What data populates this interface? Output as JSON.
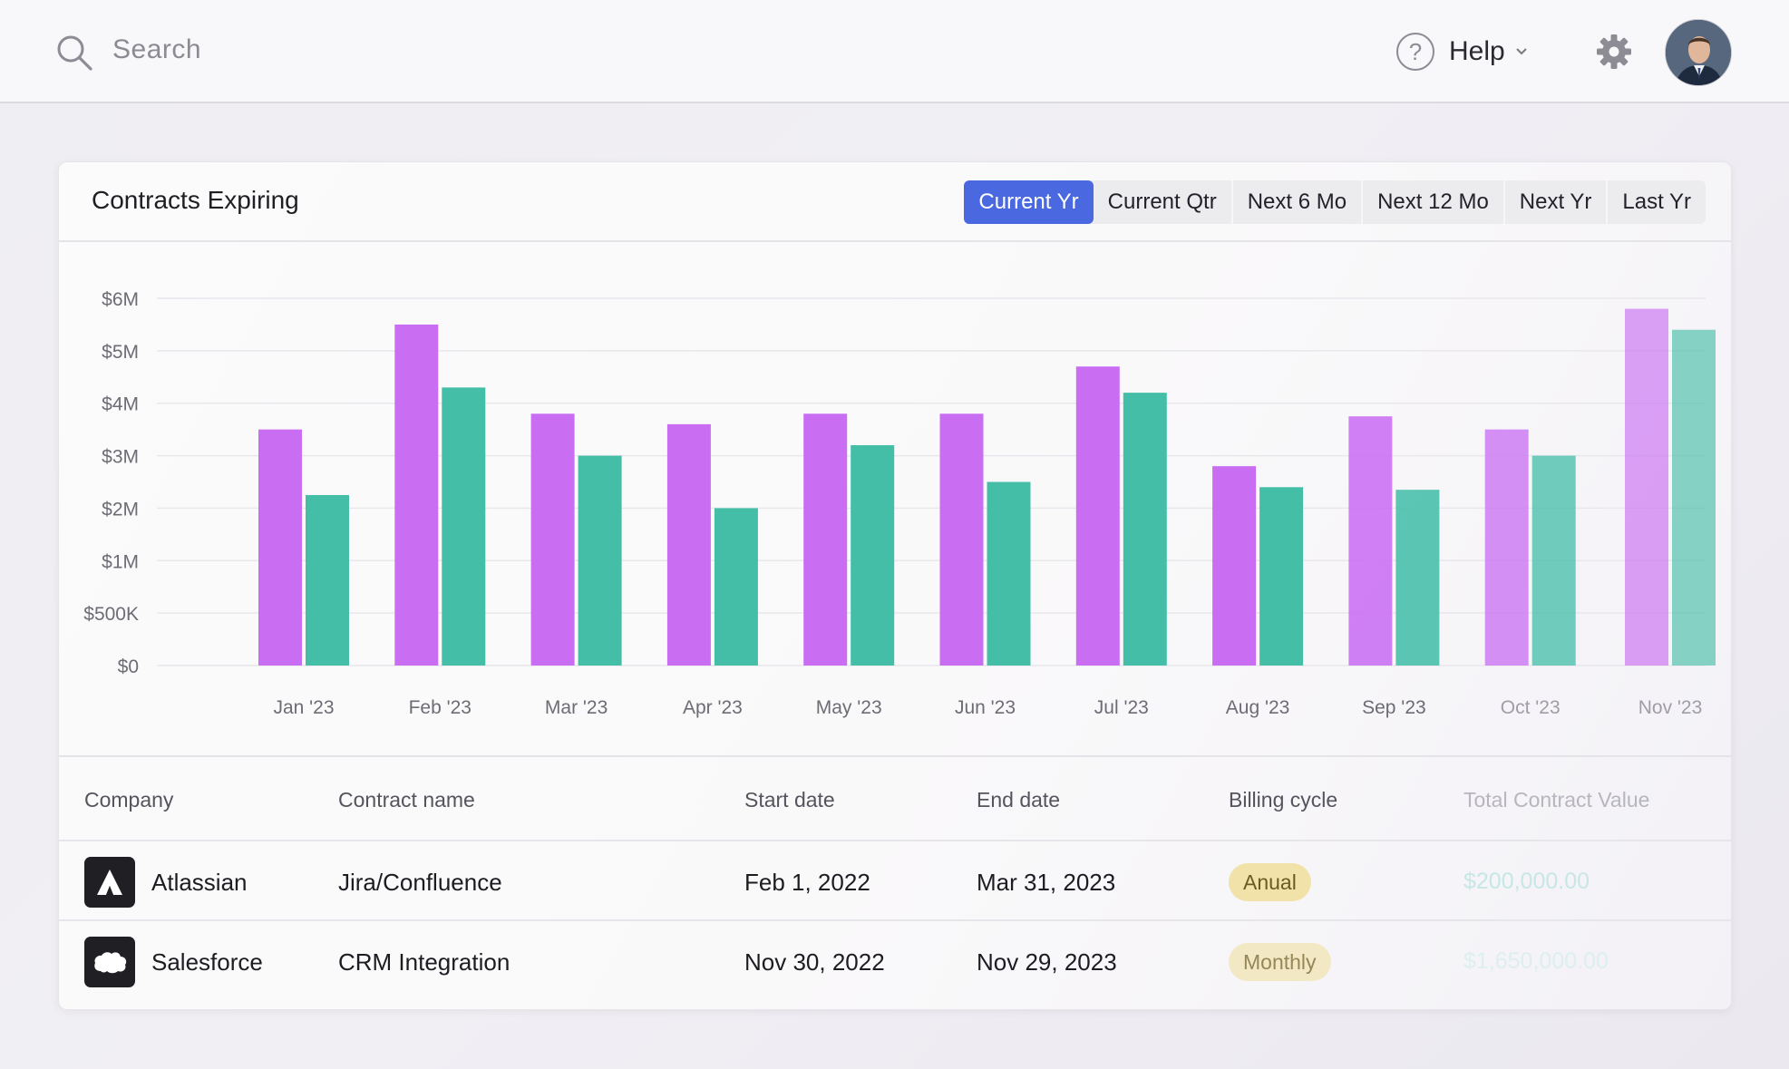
{
  "topbar": {
    "search_placeholder": "Search",
    "help_label": "Help",
    "icons": [
      "search-icon",
      "help-icon",
      "chevron-down-icon",
      "gear-icon",
      "avatar"
    ]
  },
  "card": {
    "title": "Contracts Expiring",
    "tabs": [
      {
        "label": "Current Yr",
        "active": true
      },
      {
        "label": "Current Qtr",
        "active": false
      },
      {
        "label": "Next 6 Mo",
        "active": false
      },
      {
        "label": "Next 12 Mo",
        "active": false
      },
      {
        "label": "Next Yr",
        "active": false
      },
      {
        "label": "Last Yr",
        "active": false
      }
    ]
  },
  "chart_data": {
    "type": "bar",
    "categories": [
      "Jan '23",
      "Feb '23",
      "Mar '23",
      "Apr '23",
      "May '23",
      "Jun '23",
      "Jul '23",
      "Aug '23",
      "Sep '23",
      "Oct '23",
      "Nov '23"
    ],
    "series": [
      {
        "color": "#c96ef3",
        "values": [
          3.5,
          5.5,
          3.8,
          3.6,
          3.8,
          3.8,
          4.7,
          2.8,
          3.75,
          3.5,
          5.8
        ]
      },
      {
        "color": "#45bea8",
        "values": [
          2.25,
          4.3,
          3.0,
          2.0,
          3.2,
          2.5,
          4.2,
          2.4,
          2.35,
          3.0,
          5.4
        ]
      }
    ],
    "y_ticks": [
      "$0",
      "$500K",
      "$1M",
      "$2M",
      "$3M",
      "$4M",
      "$5M",
      "$6M"
    ],
    "ylim": [
      0,
      6
    ],
    "note": "y axis ticks are evenly spaced labels; values in $M read against $1M–$6M gridlines",
    "grid": true
  },
  "table": {
    "headers": [
      "Company",
      "Contract name",
      "Start date",
      "End date",
      "Billing cycle",
      "Total Contract Value"
    ],
    "rows": [
      {
        "company": "Atlassian",
        "logo": "atlassian-logo",
        "contract": "Jira/Confluence",
        "start": "Feb 1, 2022",
        "end": "Mar 31, 2023",
        "billing": "Anual",
        "value": "$200,000.00"
      },
      {
        "company": "Salesforce",
        "logo": "salesforce-logo",
        "contract": "CRM Integration",
        "start": "Nov 30, 2022",
        "end": "Nov 29, 2023",
        "billing": "Monthly",
        "value": "$1,650,000.00"
      }
    ]
  }
}
